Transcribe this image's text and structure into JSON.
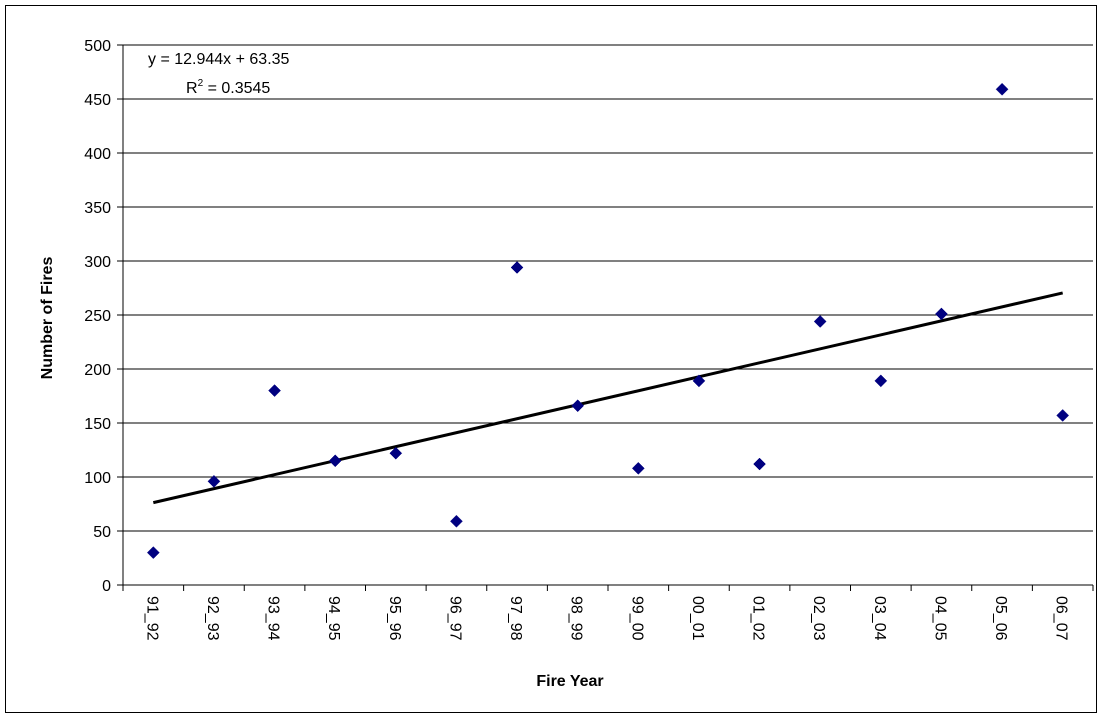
{
  "chart_data": {
    "type": "scatter",
    "title": "",
    "xlabel": "Fire Year",
    "ylabel": "Number of Fires",
    "categories": [
      "91_92",
      "92_93",
      "93_94",
      "94_95",
      "95_96",
      "96_97",
      "97_98",
      "98_99",
      "99_00",
      "00_01",
      "01_02",
      "02_03",
      "03_04",
      "04_05",
      "05_06",
      "06_07"
    ],
    "y_ticks": [
      "0",
      "50",
      "100",
      "150",
      "200",
      "250",
      "300",
      "350",
      "400",
      "450",
      "500"
    ],
    "ylim": [
      0,
      500
    ],
    "grid": "horizontal",
    "legend": "none",
    "series": [
      {
        "values": [
          30,
          96,
          180,
          115,
          122,
          59,
          294,
          166,
          108,
          189,
          112,
          244,
          189,
          251,
          459,
          157
        ],
        "marker": "diamond",
        "color": "#000080"
      }
    ],
    "trendline": {
      "type": "linear",
      "slope": 12.944,
      "intercept": 63.35,
      "color": "#000000"
    },
    "annotations": {
      "equation": "y = 12.944x + 63.35",
      "r2_prefix": "R",
      "r2_sup": "2",
      "r2_value": " = 0.3545"
    }
  }
}
